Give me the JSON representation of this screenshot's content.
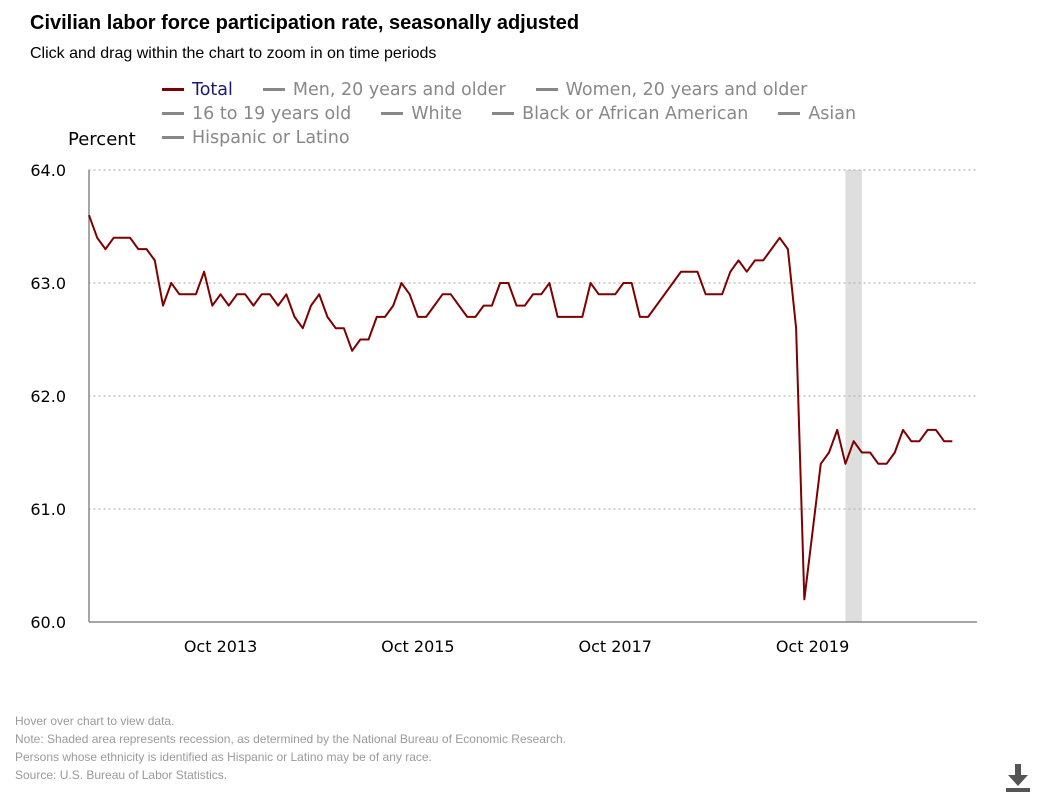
{
  "title": "Civilian labor force participation rate, seasonally adjusted",
  "subtitle": "Click and drag within the chart to zoom in on time periods",
  "legend": [
    {
      "label": "Total",
      "color": "#7f0000",
      "text_color": "#1a1a6e",
      "active": true
    },
    {
      "label": "Men, 20 years and older",
      "color": "#888888",
      "text_color": "#888888",
      "active": false
    },
    {
      "label": "Women, 20 years and older",
      "color": "#888888",
      "text_color": "#888888",
      "active": false
    },
    {
      "label": "16 to 19 years old",
      "color": "#888888",
      "text_color": "#888888",
      "active": false
    },
    {
      "label": "White",
      "color": "#888888",
      "text_color": "#888888",
      "active": false
    },
    {
      "label": "Black or African American",
      "color": "#888888",
      "text_color": "#888888",
      "active": false
    },
    {
      "label": "Asian",
      "color": "#888888",
      "text_color": "#888888",
      "active": false
    },
    {
      "label": "Hispanic or Latino",
      "color": "#888888",
      "text_color": "#888888",
      "active": false
    }
  ],
  "notes": [
    "Hover over chart to view data.",
    "Note: Shaded area represents recession, as determined by the National Bureau of Economic Research.",
    "Persons whose ethnicity is identified as Hispanic or Latino may be of any race.",
    "Source: U.S. Bureau of Labor Statistics."
  ],
  "download_icon": "download-icon",
  "chart_data": {
    "type": "line",
    "title": "Civilian labor force participation rate, seasonally adjusted",
    "ylabel": "Percent",
    "xlabel": "",
    "ylim": [
      60.0,
      64.0
    ],
    "yticks": [
      "60.0",
      "61.0",
      "62.0",
      "63.0",
      "64.0"
    ],
    "xticks": [
      "Oct 2013",
      "Oct 2015",
      "Oct 2017",
      "Oct 2019"
    ],
    "xlim": [
      "Jun 2012",
      "Jun 2021"
    ],
    "grid": "horizontal dotted",
    "recession": {
      "start": "Feb 2020",
      "end": "Apr 2020",
      "color": "#dedede"
    },
    "line_color": "#7f0000",
    "series": [
      {
        "name": "Total",
        "start": "Jun 2012",
        "frequency": "monthly",
        "values": [
          63.6,
          63.4,
          63.3,
          63.4,
          63.4,
          63.4,
          63.3,
          63.3,
          63.2,
          62.8,
          63.0,
          62.9,
          62.9,
          62.9,
          63.1,
          62.8,
          62.9,
          62.8,
          62.9,
          62.9,
          62.8,
          62.9,
          62.9,
          62.8,
          62.9,
          62.7,
          62.6,
          62.8,
          62.9,
          62.7,
          62.6,
          62.6,
          62.4,
          62.5,
          62.5,
          62.7,
          62.7,
          62.8,
          63.0,
          62.9,
          62.7,
          62.7,
          62.8,
          62.9,
          62.9,
          62.8,
          62.7,
          62.7,
          62.8,
          62.8,
          63.0,
          63.0,
          62.8,
          62.8,
          62.9,
          62.9,
          63.0,
          62.7,
          62.7,
          62.7,
          62.7,
          63.0,
          62.9,
          62.9,
          62.9,
          63.0,
          63.0,
          62.7,
          62.7,
          62.8,
          62.9,
          63.0,
          63.1,
          63.1,
          63.1,
          62.9,
          62.9,
          62.9,
          63.1,
          63.2,
          63.1,
          63.2,
          63.2,
          63.3,
          63.4,
          63.3,
          62.6,
          60.2,
          60.8,
          61.4,
          61.5,
          61.7,
          61.4,
          61.6,
          61.5,
          61.5,
          61.4,
          61.4,
          61.5,
          61.7,
          61.6,
          61.6,
          61.7,
          61.7,
          61.6,
          61.6
        ]
      }
    ]
  }
}
